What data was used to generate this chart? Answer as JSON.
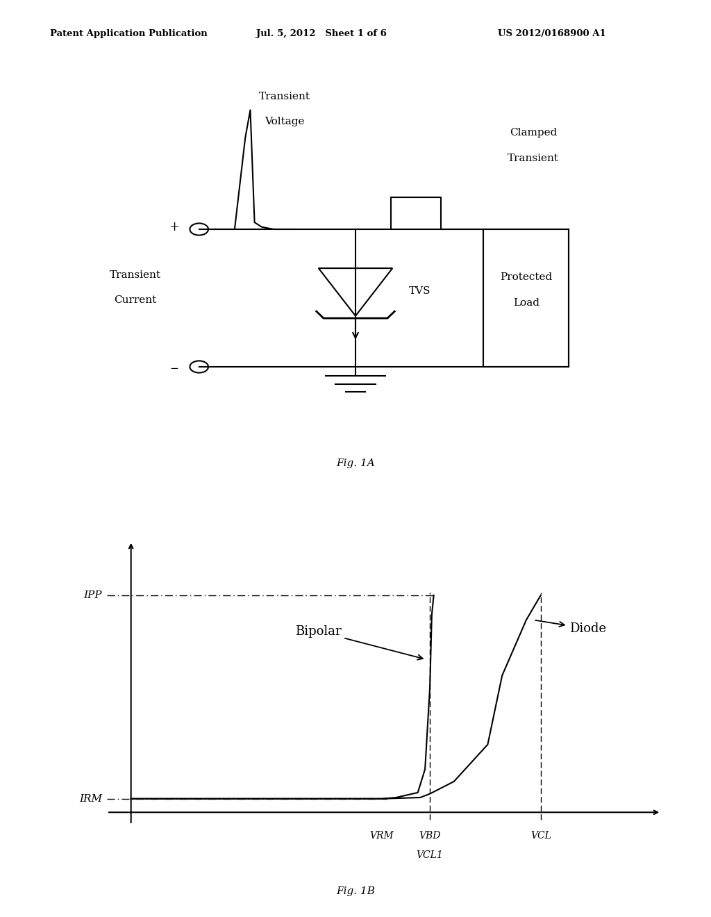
{
  "title_left": "Patent Application Publication",
  "title_center": "Jul. 5, 2012   Sheet 1 of 6",
  "title_right": "US 2012/0168900 A1",
  "fig1a_label": "Fig. 1A",
  "fig1b_label": "Fig. 1B",
  "background_color": "#ffffff",
  "line_color": "#000000",
  "text_color": "#000000",
  "fig1b_xlabel_vrm": "VRM",
  "fig1b_xlabel_vbd": "VBD",
  "fig1b_xlabel_vcl": "VCL",
  "fig1b_xlabel_vcl1": "VCL1",
  "fig1b_ylabel_ipp": "IPP",
  "fig1b_ylabel_irm": "IRM",
  "fig1b_label_bipolar": "Bipolar",
  "fig1b_label_diode": "Diode"
}
